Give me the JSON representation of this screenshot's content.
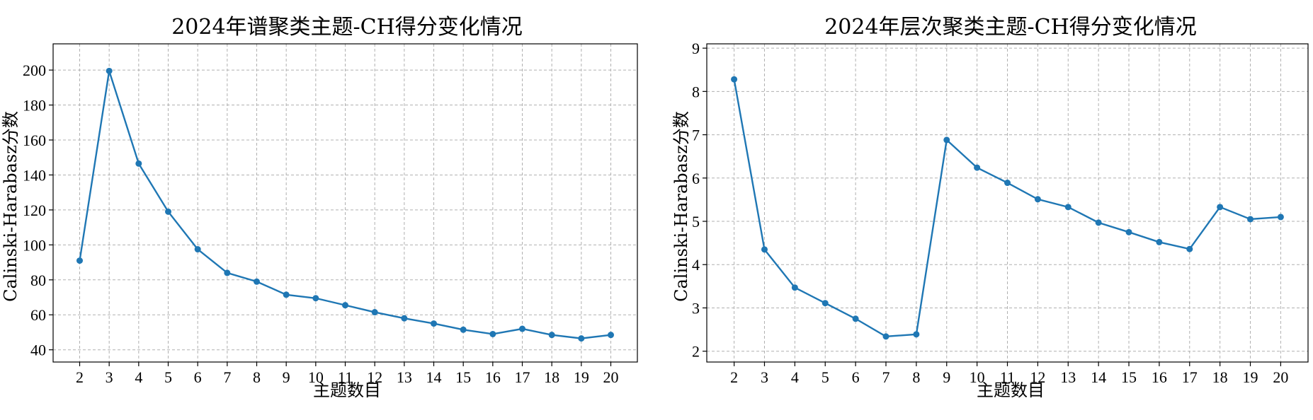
{
  "colors": {
    "series": "#1f77b4"
  },
  "chart_data": [
    {
      "type": "line",
      "title": "2024年谱聚类主题-CH得分变化情况",
      "xlabel": "主题数目",
      "ylabel": "Calinski-Harabasz分数",
      "x": [
        2,
        3,
        4,
        5,
        6,
        7,
        8,
        9,
        10,
        11,
        12,
        13,
        14,
        15,
        16,
        17,
        18,
        19,
        20
      ],
      "series": [
        {
          "values": [
            91,
            199.5,
            146.5,
            119,
            97.5,
            84,
            79,
            71.5,
            69.5,
            65.5,
            61.5,
            58,
            55,
            51.5,
            49,
            52,
            48.5,
            46.5,
            48.5
          ]
        }
      ],
      "xlim": [
        1.1,
        20.9
      ],
      "ylim": [
        33,
        215
      ],
      "xticks": [
        2,
        3,
        4,
        5,
        6,
        7,
        8,
        9,
        10,
        11,
        12,
        13,
        14,
        15,
        16,
        17,
        18,
        19,
        20
      ],
      "yticks": [
        40,
        60,
        80,
        100,
        120,
        140,
        160,
        180,
        200
      ],
      "grid": true
    },
    {
      "type": "line",
      "title": "2024年层次聚类主题-CH得分变化情况",
      "xlabel": "主题数目",
      "ylabel": "Calinski-Harabasz分数",
      "x": [
        2,
        3,
        4,
        5,
        6,
        7,
        8,
        9,
        10,
        11,
        12,
        13,
        14,
        15,
        16,
        17,
        18,
        19,
        20
      ],
      "series": [
        {
          "values": [
            8.28,
            4.35,
            3.47,
            3.11,
            2.75,
            2.34,
            2.39,
            6.88,
            6.24,
            5.89,
            5.51,
            5.33,
            4.97,
            4.75,
            4.52,
            4.36,
            5.33,
            5.05,
            5.1
          ]
        }
      ],
      "xlim": [
        1.1,
        20.9
      ],
      "ylim": [
        1.75,
        9.1
      ],
      "xticks": [
        2,
        3,
        4,
        5,
        6,
        7,
        8,
        9,
        10,
        11,
        12,
        13,
        14,
        15,
        16,
        17,
        18,
        19,
        20
      ],
      "yticks": [
        2,
        3,
        4,
        5,
        6,
        7,
        8,
        9
      ],
      "grid": true
    }
  ]
}
